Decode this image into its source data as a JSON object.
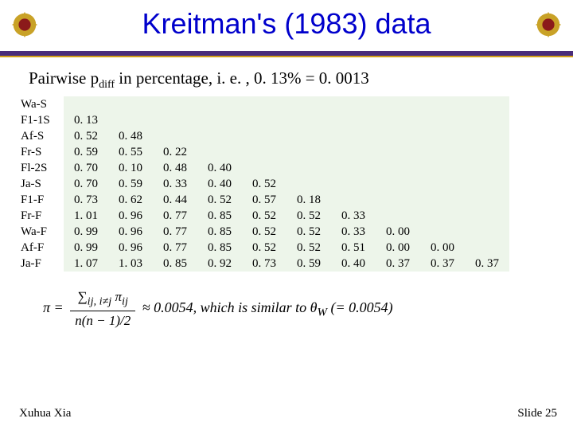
{
  "title": "Kreitman's (1983) data",
  "subtitle_pre": "Pairwise p",
  "subtitle_sub": "diff",
  "subtitle_post": " in percentage, i. e. , 0. 13% = 0. 0013",
  "labels": [
    "Wa-S",
    "F1-1S",
    "Af-S",
    "Fr-S",
    "Fl-2S",
    "Ja-S",
    "F1-F",
    "Fr-F",
    "Wa-F",
    "Af-F",
    "Ja-F"
  ],
  "matrix": [
    [],
    [
      "0. 13"
    ],
    [
      "0. 52",
      "0. 48"
    ],
    [
      "0. 59",
      "0. 55",
      "0. 22"
    ],
    [
      "0. 70",
      "0. 10",
      "0. 48",
      "0. 40"
    ],
    [
      "0. 70",
      "0. 59",
      "0. 33",
      "0. 40",
      "0. 52"
    ],
    [
      "0. 73",
      "0. 62",
      "0. 44",
      "0. 52",
      "0. 57",
      "0. 18"
    ],
    [
      "1. 01",
      "0. 96",
      "0. 77",
      "0. 85",
      "0. 52",
      "0. 52",
      "0. 33"
    ],
    [
      "0. 99",
      "0. 96",
      "0. 77",
      "0. 85",
      "0. 52",
      "0. 52",
      "0. 33",
      "0. 00"
    ],
    [
      "0. 99",
      "0. 96",
      "0. 77",
      "0. 85",
      "0. 52",
      "0. 52",
      "0. 51",
      "0. 00",
      "0. 00"
    ],
    [
      "1. 07",
      "1. 03",
      "0. 85",
      "0. 92",
      "0. 73",
      "0. 59",
      "0. 40",
      "0. 37",
      "0. 37",
      "0. 37"
    ]
  ],
  "ncols": 10,
  "shade_color": "#edf5ea",
  "eq": {
    "pi": "π",
    "eq": " = ",
    "num": "∑<sub>ij, i≠j</sub> π<sub>ij</sub>",
    "den": "n(n − 1)/2",
    "tail": " ≈ 0.0054, which is similar to θ<sub>W</sub> (= 0.0054)"
  },
  "footer_left": "Xuhua Xia",
  "footer_right": "Slide 25",
  "colors": {
    "title": "#0000cc",
    "divider_top": "#4a2c7a",
    "divider_bottom": "#d4a017",
    "emblem_gold": "#c9a227",
    "emblem_red": "#8b1a1a"
  }
}
